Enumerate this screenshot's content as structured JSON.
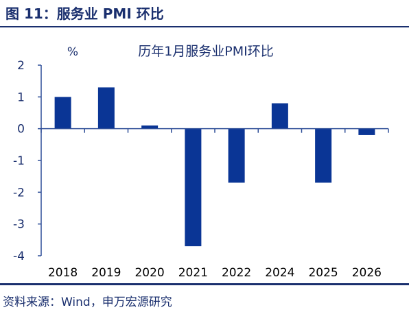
{
  "header": {
    "figure_title": "图 11：服务业 PMI 环比"
  },
  "footer": {
    "source": "资料来源：Wind，申万宏源研究"
  },
  "colors": {
    "bar": "#0a3595",
    "axis": "#2f4f98",
    "title": "#1a2f6e",
    "text": "#1a2f6e"
  },
  "chart_data": {
    "type": "bar",
    "title": "历年1月服务业PMI环比",
    "ylabel": "%",
    "xlabel": "",
    "categories": [
      "2018",
      "2019",
      "2020",
      "2021",
      "2022",
      "2024",
      "2025",
      "2026"
    ],
    "values": [
      1.0,
      1.3,
      0.1,
      -3.7,
      -1.7,
      0.8,
      -1.7,
      -0.2
    ],
    "ylim": [
      -4,
      2
    ],
    "yticks": [
      "2",
      "1",
      "0",
      "-1",
      "-2",
      "-3",
      "-4"
    ],
    "grid": false,
    "legend": "none"
  }
}
